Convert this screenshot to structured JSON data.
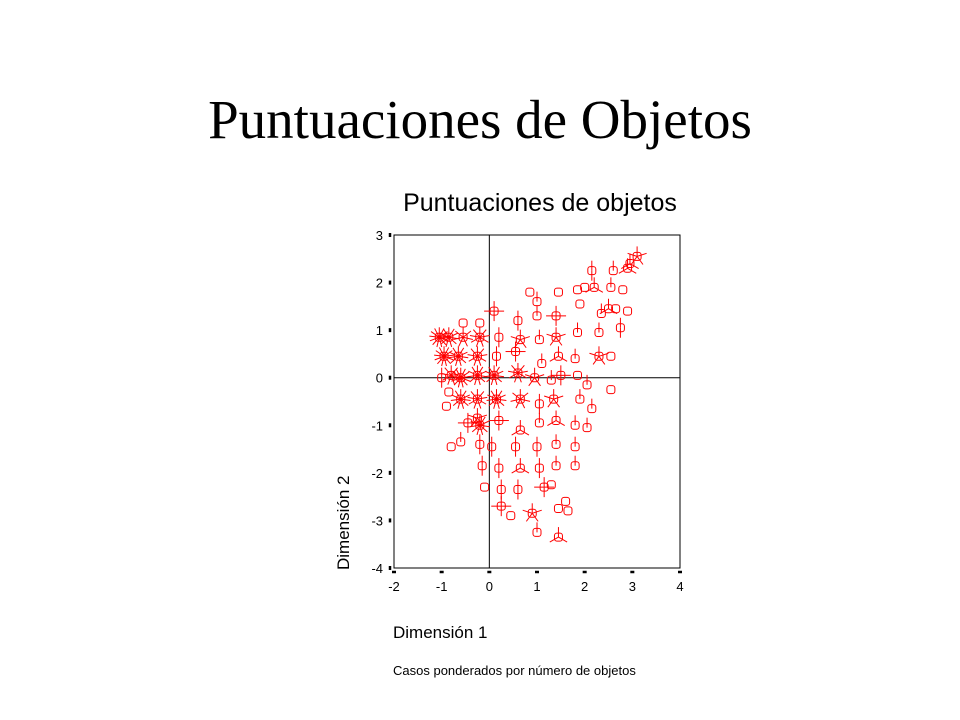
{
  "slide": {
    "title": "Puntuaciones de Objetos"
  },
  "chart_data": {
    "type": "scatter",
    "title": "Puntuaciones de objetos",
    "xlabel": "Dimensión 1",
    "ylabel": "Dimensión 2",
    "note": "Casos ponderados por número de objetos",
    "xlim": [
      -2,
      4
    ],
    "ylim": [
      -4,
      3
    ],
    "xticks": [
      -2,
      -1,
      0,
      1,
      2,
      3,
      4
    ],
    "yticks": [
      -4,
      -3,
      -2,
      -1,
      0,
      1,
      2,
      3
    ],
    "xtick_labels": [
      "-2",
      "-1",
      "0",
      "1",
      "2",
      "3",
      "4"
    ],
    "ytick_labels": [
      "-4",
      "-3",
      "-2",
      "-1",
      "0",
      "1",
      "2",
      "3"
    ],
    "reference_lines": {
      "x": 0,
      "y": 0
    },
    "grid": false,
    "legend": "none",
    "marker_color": "#ff0000",
    "marker_note": "Sunflower markers: circle with one petal line per extra weighted case",
    "points": [
      {
        "x": 3.1,
        "y": 2.55,
        "w": 6
      },
      {
        "x": 2.95,
        "y": 2.4,
        "w": 4
      },
      {
        "x": 2.9,
        "y": 2.3,
        "w": 4
      },
      {
        "x": 2.15,
        "y": 2.25,
        "w": 3
      },
      {
        "x": 2.6,
        "y": 2.25,
        "w": 2
      },
      {
        "x": 2.0,
        "y": 1.9,
        "w": 1
      },
      {
        "x": 2.2,
        "y": 1.9,
        "w": 4
      },
      {
        "x": 2.55,
        "y": 1.9,
        "w": 2
      },
      {
        "x": 2.8,
        "y": 1.85,
        "w": 1
      },
      {
        "x": 1.85,
        "y": 1.85,
        "w": 1
      },
      {
        "x": 1.45,
        "y": 1.8,
        "w": 1
      },
      {
        "x": 0.85,
        "y": 1.8,
        "w": 1
      },
      {
        "x": 1.0,
        "y": 1.6,
        "w": 2
      },
      {
        "x": 0.1,
        "y": 1.4,
        "w": 5
      },
      {
        "x": 1.4,
        "y": 1.3,
        "w": 5
      },
      {
        "x": 1.0,
        "y": 1.3,
        "w": 2
      },
      {
        "x": 0.6,
        "y": 1.2,
        "w": 3
      },
      {
        "x": 1.9,
        "y": 1.55,
        "w": 1
      },
      {
        "x": 2.35,
        "y": 1.35,
        "w": 2
      },
      {
        "x": 2.5,
        "y": 1.45,
        "w": 4
      },
      {
        "x": 2.65,
        "y": 1.45,
        "w": 1
      },
      {
        "x": 2.9,
        "y": 1.4,
        "w": 1
      },
      {
        "x": 2.75,
        "y": 1.05,
        "w": 3
      },
      {
        "x": 2.3,
        "y": 0.95,
        "w": 2
      },
      {
        "x": 1.85,
        "y": 0.95,
        "w": 2
      },
      {
        "x": 0.2,
        "y": 0.85,
        "w": 3
      },
      {
        "x": 0.65,
        "y": 0.8,
        "w": 6
      },
      {
        "x": 1.05,
        "y": 0.8,
        "w": 2
      },
      {
        "x": 1.4,
        "y": 0.85,
        "w": 6
      },
      {
        "x": 1.45,
        "y": 0.45,
        "w": 4
      },
      {
        "x": 0.55,
        "y": 0.55,
        "w": 5
      },
      {
        "x": 0.15,
        "y": 0.45,
        "w": 3
      },
      {
        "x": 1.1,
        "y": 0.3,
        "w": 2
      },
      {
        "x": 1.8,
        "y": 0.4,
        "w": 2
      },
      {
        "x": 2.3,
        "y": 0.45,
        "w": 6
      },
      {
        "x": 2.55,
        "y": 0.45,
        "w": 1
      },
      {
        "x": 1.5,
        "y": 0.05,
        "w": 5
      },
      {
        "x": 1.85,
        "y": 0.05,
        "w": 1
      },
      {
        "x": 0.6,
        "y": 0.1,
        "w": 10
      },
      {
        "x": 0.95,
        "y": 0.0,
        "w": 6
      },
      {
        "x": 1.3,
        "y": -0.05,
        "w": 2
      },
      {
        "x": 2.05,
        "y": -0.15,
        "w": 2
      },
      {
        "x": 2.55,
        "y": -0.25,
        "w": 1
      },
      {
        "x": 1.9,
        "y": -0.45,
        "w": 2
      },
      {
        "x": 2.15,
        "y": -0.65,
        "w": 2
      },
      {
        "x": 0.65,
        "y": -0.45,
        "w": 8
      },
      {
        "x": 1.05,
        "y": -0.55,
        "w": 3
      },
      {
        "x": 1.35,
        "y": -0.45,
        "w": 6
      },
      {
        "x": 0.2,
        "y": -0.9,
        "w": 5
      },
      {
        "x": 0.65,
        "y": -1.1,
        "w": 4
      },
      {
        "x": 1.05,
        "y": -0.95,
        "w": 2
      },
      {
        "x": 1.4,
        "y": -0.9,
        "w": 4
      },
      {
        "x": 1.8,
        "y": -1.0,
        "w": 2
      },
      {
        "x": 2.05,
        "y": -1.05,
        "w": 2
      },
      {
        "x": 0.05,
        "y": -1.45,
        "w": 3
      },
      {
        "x": 0.55,
        "y": -1.45,
        "w": 3
      },
      {
        "x": 1.0,
        "y": -1.45,
        "w": 3
      },
      {
        "x": 1.4,
        "y": -1.4,
        "w": 2
      },
      {
        "x": 1.8,
        "y": -1.45,
        "w": 2
      },
      {
        "x": -0.8,
        "y": -1.45,
        "w": 1
      },
      {
        "x": -0.6,
        "y": -1.35,
        "w": 2
      },
      {
        "x": -0.2,
        "y": -1.4,
        "w": 3
      },
      {
        "x": -0.15,
        "y": -1.85,
        "w": 3
      },
      {
        "x": 0.2,
        "y": -1.9,
        "w": 3
      },
      {
        "x": 0.65,
        "y": -1.9,
        "w": 4
      },
      {
        "x": 1.05,
        "y": -1.9,
        "w": 3
      },
      {
        "x": 1.4,
        "y": -1.85,
        "w": 2
      },
      {
        "x": 1.8,
        "y": -1.85,
        "w": 2
      },
      {
        "x": -0.1,
        "y": -2.3,
        "w": 1
      },
      {
        "x": 0.25,
        "y": -2.35,
        "w": 3
      },
      {
        "x": 0.6,
        "y": -2.35,
        "w": 3
      },
      {
        "x": 1.15,
        "y": -2.3,
        "w": 5
      },
      {
        "x": 1.3,
        "y": -2.25,
        "w": 1
      },
      {
        "x": 0.25,
        "y": -2.7,
        "w": 5
      },
      {
        "x": 0.45,
        "y": -2.9,
        "w": 1
      },
      {
        "x": 0.9,
        "y": -2.85,
        "w": 6
      },
      {
        "x": 1.45,
        "y": -2.75,
        "w": 1
      },
      {
        "x": 1.6,
        "y": -2.6,
        "w": 1
      },
      {
        "x": 1.65,
        "y": -2.8,
        "w": 1
      },
      {
        "x": 1.0,
        "y": -3.25,
        "w": 2
      },
      {
        "x": 1.45,
        "y": -3.35,
        "w": 4
      },
      {
        "x": -1.05,
        "y": 0.85,
        "w": 14
      },
      {
        "x": -0.85,
        "y": 0.85,
        "w": 12
      },
      {
        "x": -0.55,
        "y": 0.85,
        "w": 8
      },
      {
        "x": -0.2,
        "y": 0.85,
        "w": 10
      },
      {
        "x": -0.55,
        "y": 1.15,
        "w": 1
      },
      {
        "x": -0.2,
        "y": 1.15,
        "w": 1
      },
      {
        "x": -0.95,
        "y": 0.45,
        "w": 14
      },
      {
        "x": -0.65,
        "y": 0.45,
        "w": 12
      },
      {
        "x": -0.25,
        "y": 0.45,
        "w": 10
      },
      {
        "x": -1.0,
        "y": 0.0,
        "w": 3
      },
      {
        "x": -0.8,
        "y": 0.05,
        "w": 10
      },
      {
        "x": -0.6,
        "y": 0.0,
        "w": 14
      },
      {
        "x": -0.25,
        "y": 0.05,
        "w": 12
      },
      {
        "x": 0.1,
        "y": 0.05,
        "w": 12
      },
      {
        "x": -0.85,
        "y": -0.3,
        "w": 1
      },
      {
        "x": -0.6,
        "y": -0.45,
        "w": 12
      },
      {
        "x": -0.25,
        "y": -0.45,
        "w": 10
      },
      {
        "x": 0.15,
        "y": -0.45,
        "w": 12
      },
      {
        "x": -0.45,
        "y": -0.95,
        "w": 5
      },
      {
        "x": -0.2,
        "y": -1.0,
        "w": 12
      },
      {
        "x": -0.25,
        "y": -0.85,
        "w": 6
      },
      {
        "x": -0.9,
        "y": -0.6,
        "w": 1
      }
    ]
  }
}
